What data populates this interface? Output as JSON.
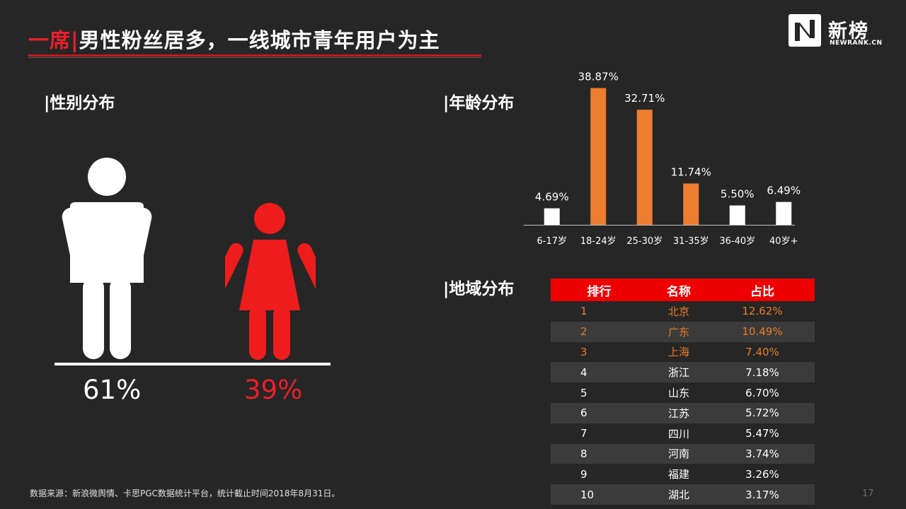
{
  "title": {
    "highlight": "一席|",
    "text": "男性粉丝居多，一线城市青年用户为主"
  },
  "logo": {
    "cn": "新榜",
    "en": "NEWRANK.CN"
  },
  "sections": {
    "gender": "|性别分布",
    "age": "|年龄分布",
    "region": "|地域分布"
  },
  "gender": {
    "male_pct": "61%",
    "female_pct": "39%",
    "male_icon": "male-person-icon",
    "female_icon": "female-person-icon",
    "male_color": "#ffffff",
    "female_color": "#ee1c1c"
  },
  "chart_data": {
    "type": "bar",
    "categories": [
      "6-17岁",
      "18-24岁",
      "25-30岁",
      "31-35岁",
      "36-40岁",
      "40岁+"
    ],
    "values": [
      4.69,
      38.87,
      32.71,
      11.74,
      5.5,
      6.49
    ],
    "labels": [
      "4.69%",
      "38.87%",
      "32.71%",
      "11.74%",
      "5.50%",
      "6.49%"
    ],
    "colors": [
      "#ffffff",
      "#ed7d31",
      "#ed7d31",
      "#ed7d31",
      "#ffffff",
      "#ffffff"
    ],
    "ylim": [
      0,
      40
    ],
    "grid": false
  },
  "region": {
    "headers": [
      "排行",
      "名称",
      "占比"
    ],
    "highlight_color": "#ea7a2c",
    "header_color": "#ee0000",
    "rows": [
      {
        "rank": "1",
        "name": "北京",
        "pct": "12.62%"
      },
      {
        "rank": "2",
        "name": "广东",
        "pct": "10.49%"
      },
      {
        "rank": "3",
        "name": "上海",
        "pct": "7.40%"
      },
      {
        "rank": "4",
        "name": "浙江",
        "pct": "7.18%"
      },
      {
        "rank": "5",
        "name": "山东",
        "pct": "6.70%"
      },
      {
        "rank": "6",
        "name": "江苏",
        "pct": "5.72%"
      },
      {
        "rank": "7",
        "name": "四川",
        "pct": "5.47%"
      },
      {
        "rank": "8",
        "name": "河南",
        "pct": "3.74%"
      },
      {
        "rank": "9",
        "name": "福建",
        "pct": "3.26%"
      },
      {
        "rank": "10",
        "name": "湖北",
        "pct": "3.17%"
      }
    ]
  },
  "footnote": "数据来源：新浪微舆情、卡思PGC数据统计平台，统计截止时间2018年8月31日。",
  "page_number": "17"
}
